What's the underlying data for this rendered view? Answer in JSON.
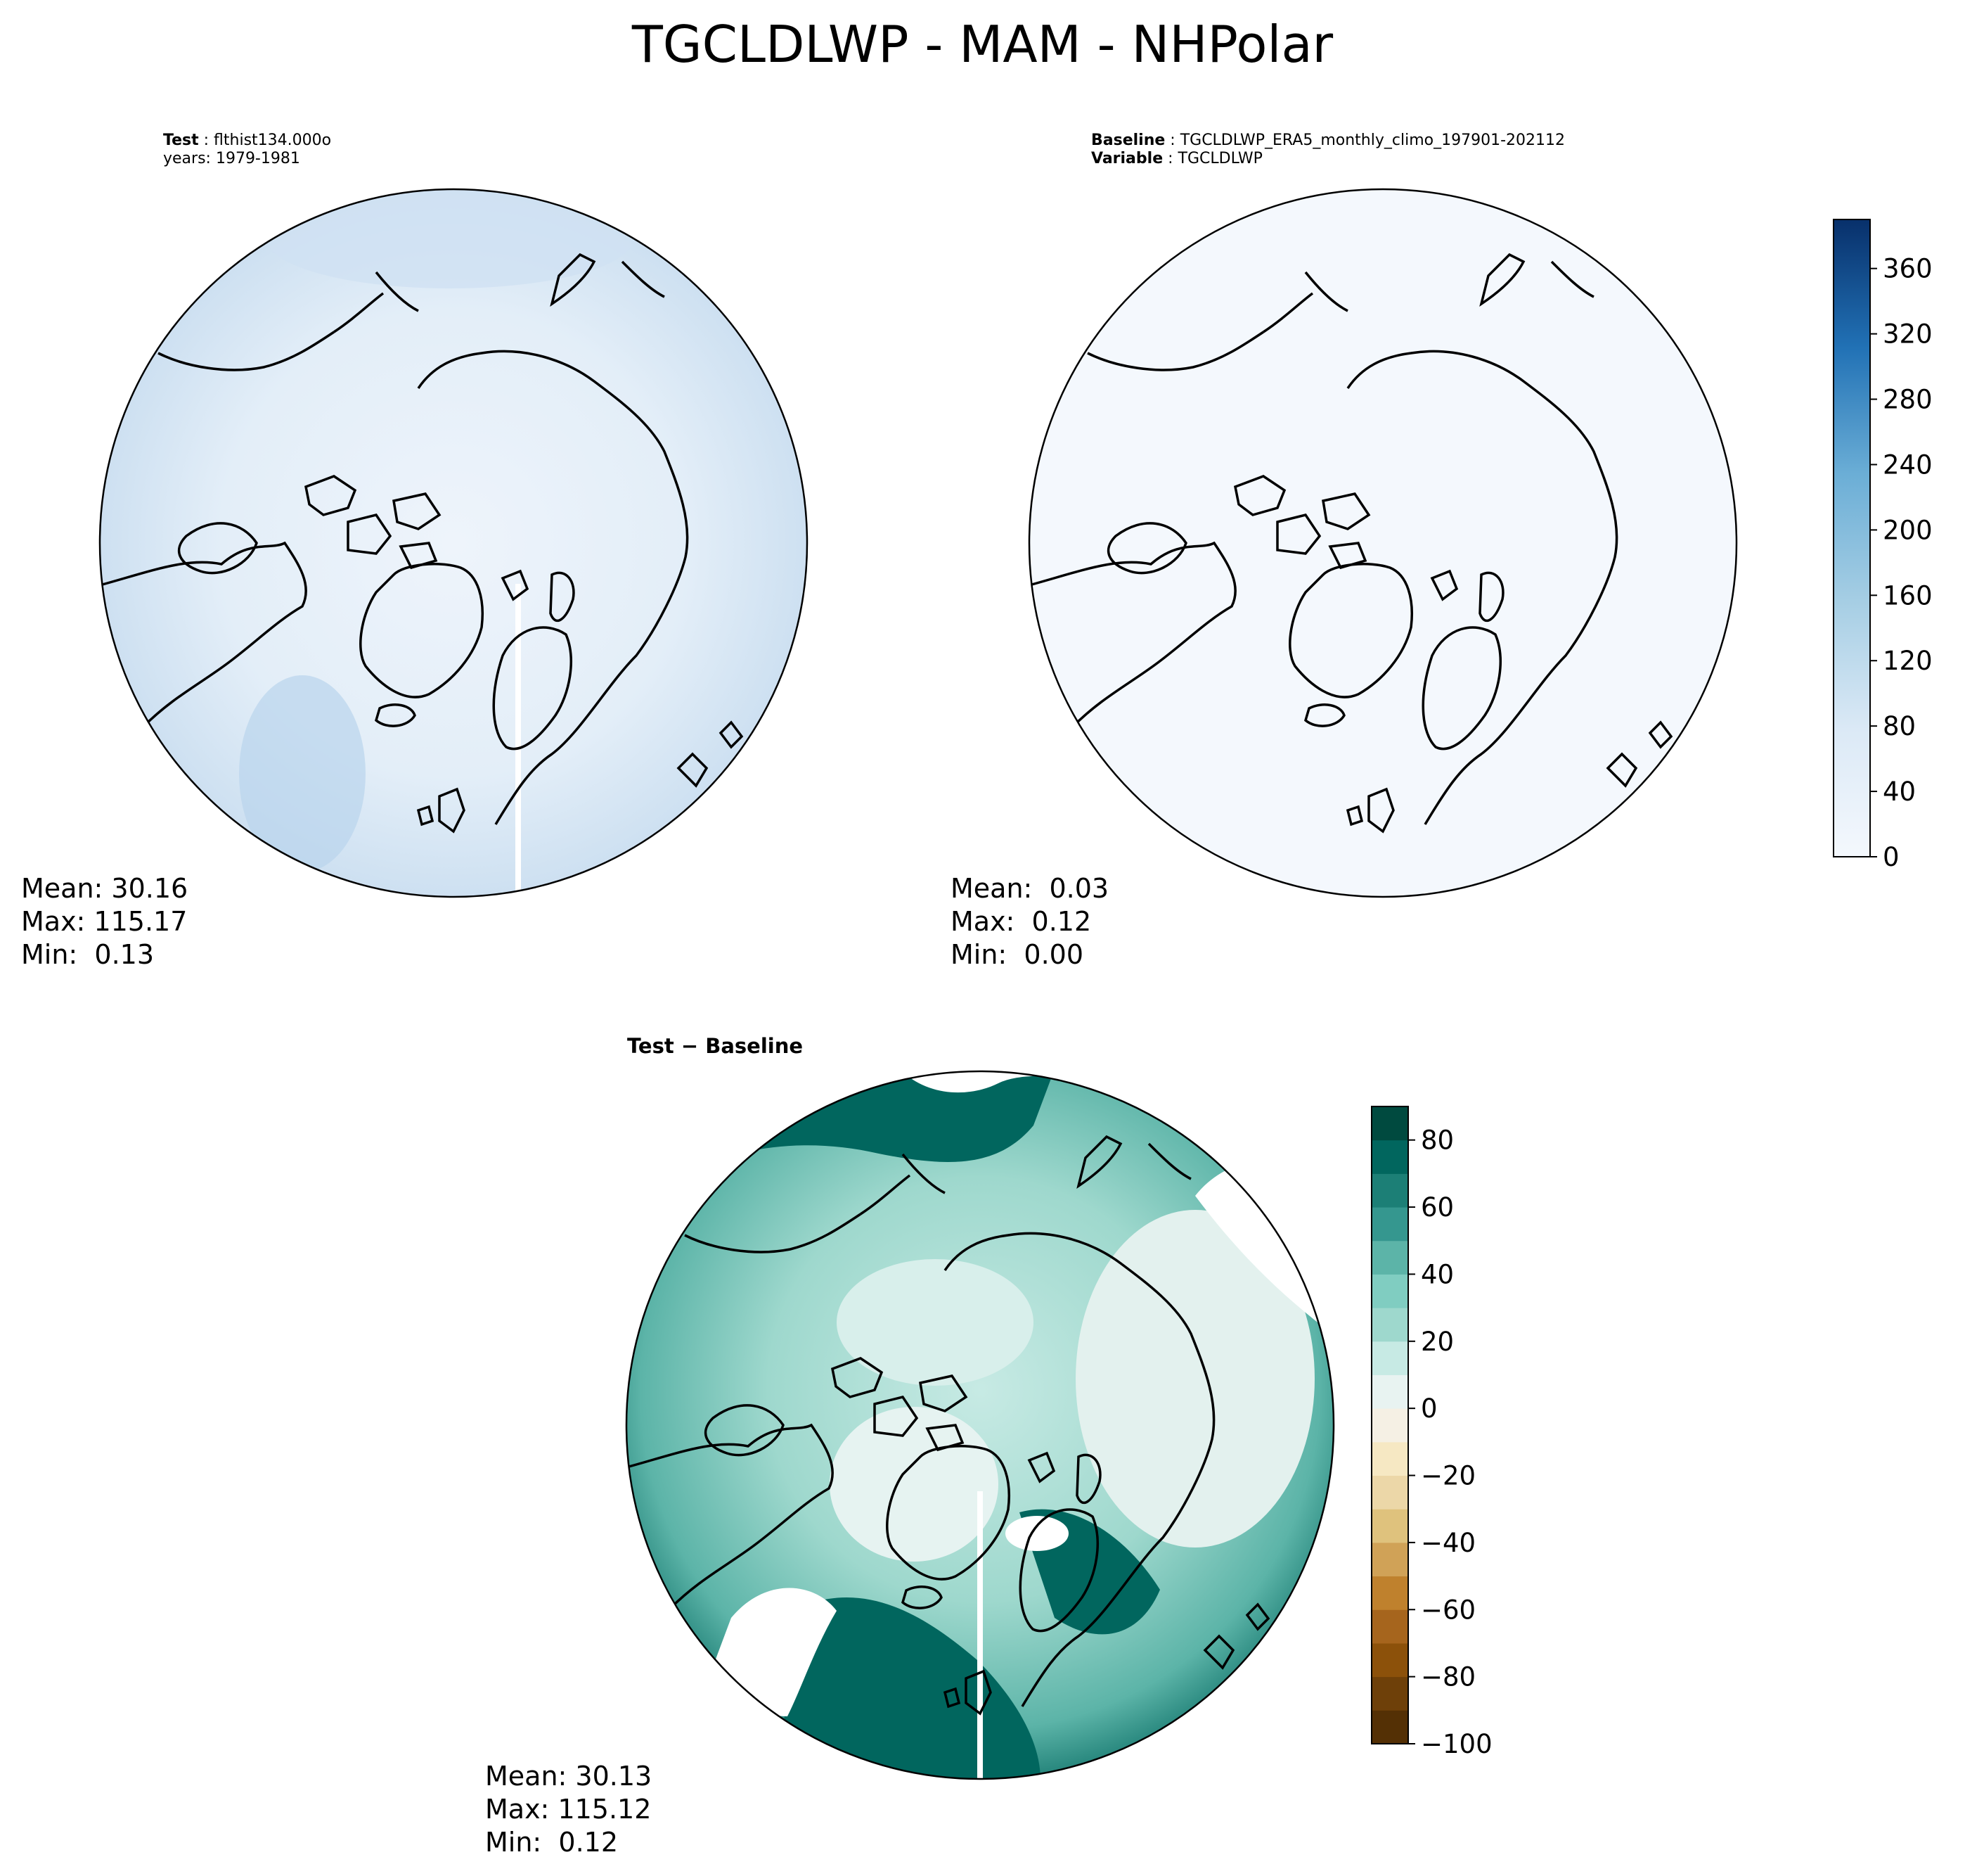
{
  "title": "TGCLDLWP - MAM - NHPolar",
  "panels": {
    "test": {
      "header_key_1": "Test",
      "header_val_1": "flthist134.000o",
      "header_line_2": "years: 1979-1981",
      "stats": {
        "mean": "Mean: 30.16",
        "max": "Max: 115.17",
        "min": "Min:  0.13"
      }
    },
    "baseline": {
      "header_key_1": "Baseline",
      "header_val_1": "TGCLDLWP_ERA5_monthly_climo_197901-202112",
      "header_key_2": "Variable",
      "header_val_2": "TGCLDLWP",
      "stats": {
        "mean": "Mean:  0.03",
        "max": "Max:  0.12",
        "min": "Min:  0.00"
      }
    },
    "diff": {
      "title": "Test − Baseline",
      "stats": {
        "mean": "Mean: 30.13",
        "max": "Max: 115.12",
        "min": "Min:  0.12"
      }
    }
  },
  "colorbars": {
    "abs": {
      "ticks": [
        "360",
        "320",
        "280",
        "240",
        "200",
        "160",
        "120",
        "80",
        "40",
        "0"
      ],
      "tick_values": [
        360,
        320,
        280,
        240,
        200,
        160,
        120,
        80,
        40,
        0
      ],
      "range": [
        0,
        390
      ],
      "colormap": "Blues",
      "color_low": "#f4f8fd",
      "color_high": "#08306b"
    },
    "diff": {
      "ticks": [
        "80",
        "60",
        "40",
        "20",
        "0",
        "−20",
        "−40",
        "−60",
        "−80",
        "−100"
      ],
      "tick_values": [
        80,
        60,
        40,
        20,
        0,
        -20,
        -40,
        -60,
        -80,
        -100
      ],
      "range": [
        -100,
        90
      ],
      "colormap": "BrBG",
      "color_low": "#543005",
      "color_high": "#003c30"
    }
  },
  "map": {
    "projection": "north polar stereographic",
    "test_fill": "#e6f0f9",
    "baseline_fill": "#f4f8fd",
    "diff_fill": "#9ed8cd",
    "coastline_color": "#000000"
  }
}
